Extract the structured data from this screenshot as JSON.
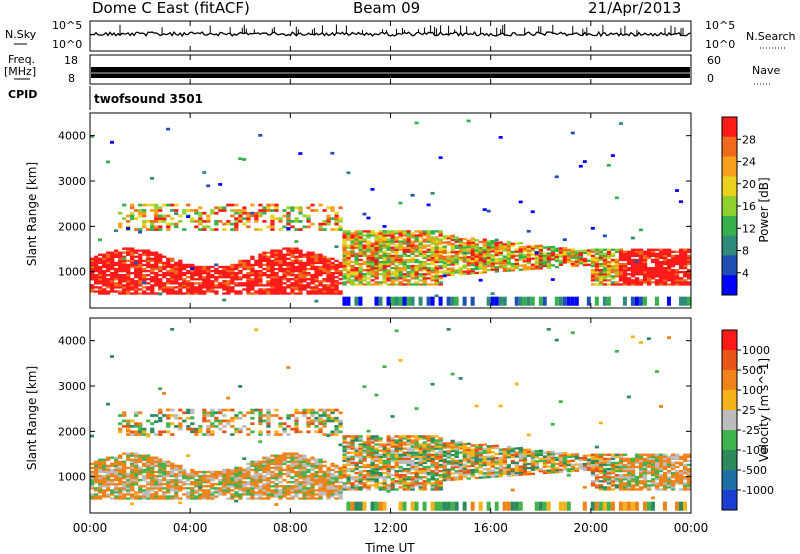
{
  "header": {
    "station": "Dome C East (fitACF)",
    "beam": "Beam 09",
    "date": "21/Apr/2013"
  },
  "sky_panel": {
    "left_label": "N.Sky",
    "right_label": "N.Search",
    "left_ticks": [
      "10^5",
      "10^0"
    ],
    "right_ticks": [
      "10^5",
      "10^0"
    ]
  },
  "freq_panel": {
    "left_label_1": "Freq.",
    "left_label_2": "[MHz]",
    "left_ticks": [
      "18",
      "8"
    ],
    "right_label": "Nave",
    "right_ticks": [
      "60",
      "0"
    ]
  },
  "cpid": {
    "label": "CPID",
    "value": "twofsound 3501"
  },
  "x_axis": {
    "label": "Time UT",
    "ticks": [
      "00:00",
      "04:00",
      "08:00",
      "12:00",
      "16:00",
      "20:00",
      "00:00"
    ]
  },
  "chart_data": [
    {
      "type": "heatmap",
      "name": "power-panel",
      "ylabel": "Slant Range [km]",
      "yticks": [
        1000,
        2000,
        3000,
        4000
      ],
      "ylim": [
        200,
        4500
      ],
      "xlim_hours": [
        0,
        24
      ],
      "colorbar_label": "Power [dB]",
      "colorbar_ticks": [
        "28",
        "24",
        "20",
        "16",
        "12",
        "8",
        "4"
      ],
      "colorbar_colors": [
        "#0000ff",
        "#1f4fb3",
        "#2f8a7a",
        "#35b04a",
        "#8fd12f",
        "#e8d21e",
        "#f6a01b",
        "#ef6a1a",
        "#ff1a1a"
      ]
    },
    {
      "type": "heatmap",
      "name": "velocity-panel",
      "ylabel": "Slant Range [km]",
      "yticks": [
        1000,
        2000,
        3000,
        4000
      ],
      "ylim": [
        200,
        4500
      ],
      "xlim_hours": [
        0,
        24
      ],
      "colorbar_label": "Velocity [m s^-1]",
      "colorbar_ticks": [
        "1000",
        "500",
        "100",
        "25",
        "-25",
        "-100",
        "-500",
        "-1000"
      ],
      "colorbar_colors": [
        "#1a3fd0",
        "#1f6fa6",
        "#2d8a5c",
        "#3fb44a",
        "#bcbcbc",
        "#f6b21b",
        "#f0821a",
        "#e8551a",
        "#ff1a1a"
      ]
    }
  ]
}
